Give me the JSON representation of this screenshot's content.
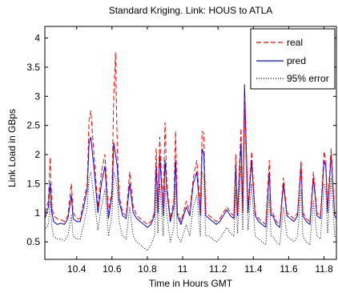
{
  "chart_data": {
    "type": "line",
    "title": "Standard Kriging.  Link:  HOUS to ATLA",
    "xlabel": "Time in Hours GMT",
    "ylabel": "Link Load in GBps",
    "xlim": [
      10.22,
      11.87
    ],
    "ylim": [
      0.2,
      4.2
    ],
    "x_ticks": [
      10.4,
      10.6,
      10.8,
      11.0,
      11.2,
      11.4,
      11.6,
      11.8
    ],
    "x_tick_labels": [
      "10.4",
      "10.6",
      "10.8",
      "11",
      "11.2",
      "11.4",
      "11.6",
      "11.8"
    ],
    "y_ticks": [
      0.5,
      1.0,
      1.5,
      2.0,
      2.5,
      3.0,
      3.5,
      4.0
    ],
    "y_tick_labels": [
      "0.5",
      "1",
      "1.5",
      "2",
      "2.5",
      "3",
      "3.5",
      "4"
    ],
    "grid": false,
    "legend_position": "top-right",
    "series": [
      {
        "name": "real",
        "color": "#ff0000",
        "style": "dashed",
        "x": [
          10.22,
          10.24,
          10.25,
          10.26,
          10.27,
          10.29,
          10.31,
          10.33,
          10.35,
          10.37,
          10.38,
          10.4,
          10.42,
          10.44,
          10.46,
          10.47,
          10.48,
          10.5,
          10.52,
          10.54,
          10.56,
          10.58,
          10.6,
          10.61,
          10.62,
          10.63,
          10.64,
          10.66,
          10.68,
          10.7,
          10.72,
          10.74,
          10.76,
          10.78,
          10.8,
          10.82,
          10.84,
          10.85,
          10.86,
          10.87,
          10.89,
          10.9,
          10.91,
          10.93,
          10.95,
          10.96,
          10.97,
          10.99,
          11.0,
          11.02,
          11.04,
          11.06,
          11.08,
          11.1,
          11.11,
          11.12,
          11.13,
          11.15,
          11.17,
          11.19,
          11.21,
          11.23,
          11.25,
          11.27,
          11.29,
          11.3,
          11.31,
          11.33,
          11.34,
          11.35,
          11.37,
          11.39,
          11.41,
          11.43,
          11.45,
          11.47,
          11.49,
          11.5,
          11.51,
          11.53,
          11.55,
          11.57,
          11.59,
          11.61,
          11.63,
          11.65,
          11.67,
          11.68,
          11.7,
          11.72,
          11.74,
          11.76,
          11.78,
          11.8,
          11.81,
          11.82,
          11.84,
          11.86,
          11.87
        ],
        "y": [
          1.0,
          1.2,
          1.95,
          1.1,
          0.95,
          0.9,
          0.88,
          0.85,
          0.95,
          1.5,
          1.0,
          0.9,
          0.9,
          1.2,
          1.5,
          2.6,
          2.75,
          1.9,
          1.1,
          1.7,
          2.0,
          1.0,
          1.4,
          3.0,
          3.75,
          2.1,
          1.3,
          1.0,
          0.95,
          1.7,
          1.1,
          0.95,
          0.9,
          0.85,
          0.8,
          0.85,
          1.0,
          2.1,
          1.1,
          2.3,
          1.0,
          2.55,
          1.5,
          0.9,
          1.2,
          2.4,
          1.0,
          0.85,
          0.95,
          1.2,
          1.0,
          1.6,
          1.9,
          1.0,
          2.4,
          2.35,
          1.0,
          0.95,
          0.9,
          0.85,
          0.9,
          1.0,
          1.1,
          1.0,
          0.95,
          2.0,
          1.0,
          2.45,
          1.0,
          3.0,
          1.1,
          2.05,
          1.0,
          0.9,
          0.85,
          0.8,
          1.9,
          1.0,
          1.0,
          0.85,
          0.8,
          1.6,
          1.0,
          0.95,
          0.9,
          1.0,
          1.9,
          1.0,
          0.9,
          0.85,
          1.7,
          1.0,
          0.95,
          2.05,
          1.9,
          1.1,
          2.1,
          1.0,
          0.95
        ]
      },
      {
        "name": "pred",
        "color": "#0000ff",
        "style": "solid",
        "x": [
          10.22,
          10.24,
          10.25,
          10.26,
          10.27,
          10.29,
          10.31,
          10.33,
          10.35,
          10.37,
          10.38,
          10.4,
          10.42,
          10.44,
          10.46,
          10.47,
          10.48,
          10.5,
          10.52,
          10.54,
          10.56,
          10.58,
          10.6,
          10.61,
          10.62,
          10.63,
          10.64,
          10.66,
          10.68,
          10.7,
          10.72,
          10.74,
          10.76,
          10.78,
          10.8,
          10.82,
          10.84,
          10.85,
          10.86,
          10.87,
          10.89,
          10.9,
          10.91,
          10.93,
          10.95,
          10.96,
          10.97,
          10.99,
          11.0,
          11.02,
          11.04,
          11.06,
          11.08,
          11.1,
          11.11,
          11.12,
          11.13,
          11.15,
          11.17,
          11.19,
          11.21,
          11.23,
          11.25,
          11.27,
          11.29,
          11.3,
          11.31,
          11.33,
          11.34,
          11.35,
          11.37,
          11.39,
          11.41,
          11.43,
          11.45,
          11.47,
          11.49,
          11.5,
          11.51,
          11.53,
          11.55,
          11.57,
          11.59,
          11.61,
          11.63,
          11.65,
          11.67,
          11.68,
          11.7,
          11.72,
          11.74,
          11.76,
          11.78,
          11.8,
          11.81,
          11.82,
          11.84,
          11.86,
          11.87
        ],
        "y": [
          0.9,
          1.1,
          1.5,
          1.0,
          0.85,
          0.8,
          0.82,
          0.8,
          0.9,
          1.3,
          0.9,
          0.85,
          0.85,
          1.1,
          1.4,
          2.2,
          2.3,
          1.7,
          1.0,
          1.5,
          1.8,
          0.9,
          1.3,
          2.2,
          2.0,
          1.8,
          1.2,
          0.95,
          0.9,
          1.5,
          1.0,
          0.9,
          0.85,
          0.8,
          0.75,
          0.8,
          0.95,
          1.8,
          1.0,
          2.0,
          0.95,
          1.9,
          1.4,
          0.85,
          1.1,
          1.9,
          0.95,
          0.8,
          0.9,
          1.1,
          0.95,
          1.5,
          1.7,
          0.95,
          2.1,
          2.0,
          0.95,
          0.9,
          0.85,
          0.8,
          0.85,
          0.95,
          1.05,
          0.95,
          0.9,
          1.8,
          0.95,
          2.2,
          1.0,
          3.2,
          1.0,
          1.9,
          0.95,
          0.85,
          0.8,
          0.75,
          1.7,
          0.95,
          0.95,
          0.8,
          0.75,
          1.5,
          0.95,
          0.9,
          0.85,
          0.95,
          1.8,
          0.95,
          0.85,
          0.8,
          1.6,
          0.95,
          0.9,
          1.9,
          1.8,
          1.0,
          2.0,
          0.95,
          0.9
        ]
      },
      {
        "name": "95% error",
        "color": "#000000",
        "style": "dotted",
        "x": [
          10.22,
          10.24,
          10.25,
          10.26,
          10.27,
          10.29,
          10.31,
          10.33,
          10.35,
          10.37,
          10.38,
          10.4,
          10.42,
          10.44,
          10.46,
          10.47,
          10.48,
          10.5,
          10.52,
          10.54,
          10.56,
          10.58,
          10.6,
          10.61,
          10.62,
          10.63,
          10.64,
          10.66,
          10.68,
          10.7,
          10.72,
          10.74,
          10.76,
          10.78,
          10.8,
          10.82,
          10.84,
          10.85,
          10.86,
          10.87,
          10.89,
          10.9,
          10.91,
          10.93,
          10.95,
          10.96,
          10.97,
          10.99,
          11.0,
          11.02,
          11.04,
          11.06,
          11.08,
          11.1,
          11.11,
          11.12,
          11.13,
          11.15,
          11.17,
          11.19,
          11.21,
          11.23,
          11.25,
          11.27,
          11.29,
          11.3,
          11.31,
          11.33,
          11.34,
          11.35,
          11.37,
          11.39,
          11.41,
          11.43,
          11.45,
          11.47,
          11.49,
          11.5,
          11.51,
          11.53,
          11.55,
          11.57,
          11.59,
          11.61,
          11.63,
          11.65,
          11.67,
          11.68,
          11.7,
          11.72,
          11.74,
          11.76,
          11.78,
          11.8,
          11.81,
          11.82,
          11.84,
          11.86,
          11.87
        ],
        "y": [
          0.7,
          0.8,
          1.2,
          0.75,
          0.6,
          0.55,
          0.55,
          0.52,
          0.6,
          0.95,
          0.6,
          0.55,
          0.55,
          0.8,
          1.1,
          1.6,
          1.7,
          1.2,
          0.7,
          1.1,
          1.4,
          0.6,
          0.95,
          1.7,
          1.6,
          1.4,
          0.85,
          0.6,
          0.55,
          1.1,
          0.6,
          0.5,
          0.45,
          0.4,
          0.35,
          0.45,
          0.6,
          1.4,
          0.65,
          1.5,
          0.6,
          1.45,
          1.0,
          0.5,
          0.75,
          1.5,
          0.6,
          0.5,
          0.6,
          0.8,
          0.6,
          1.1,
          1.3,
          0.6,
          1.7,
          1.6,
          0.6,
          0.6,
          0.55,
          0.5,
          0.55,
          0.65,
          0.75,
          0.65,
          0.6,
          1.4,
          0.65,
          1.8,
          0.7,
          2.8,
          0.7,
          1.5,
          0.6,
          0.55,
          0.5,
          0.45,
          1.3,
          0.6,
          0.6,
          0.5,
          0.45,
          1.1,
          0.6,
          0.55,
          0.5,
          0.6,
          1.4,
          0.6,
          0.5,
          0.45,
          1.2,
          0.6,
          0.55,
          1.5,
          1.4,
          0.65,
          1.6,
          0.6,
          0.55
        ]
      }
    ]
  }
}
